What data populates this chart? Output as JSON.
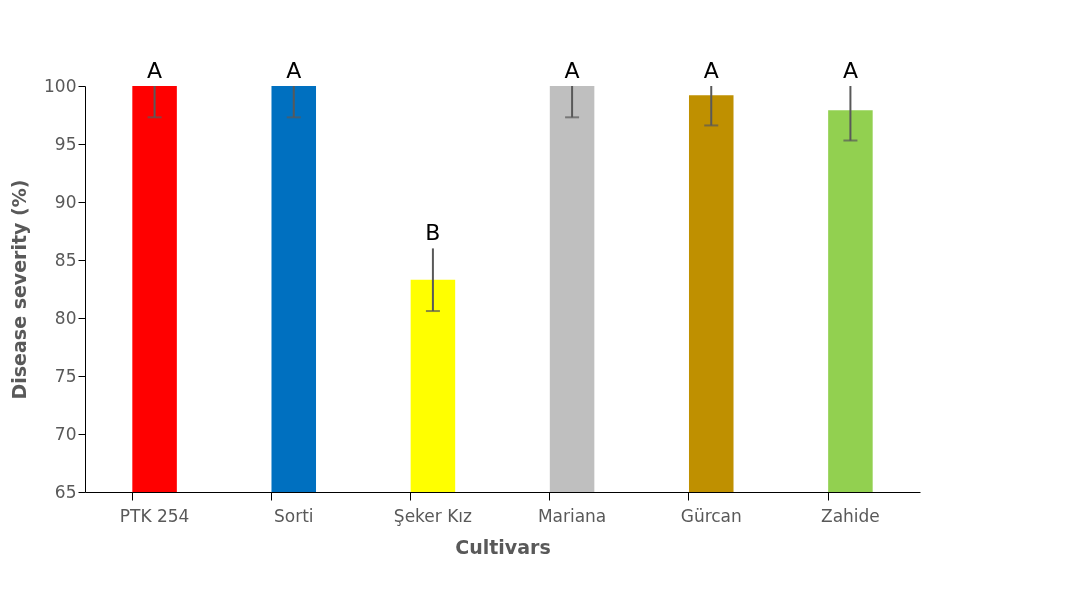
{
  "chart_data": {
    "type": "bar",
    "xlabel": "Cultivars",
    "ylabel": "Disease severity (%)",
    "categories": [
      "PTK 254",
      "Sorti",
      "Şeker Kız",
      "Mariana",
      "Gürcan",
      "Zahide"
    ],
    "values": [
      100,
      100,
      83.3,
      100,
      99.2,
      97.9
    ],
    "colors": [
      "#ff0000",
      "#0070c0",
      "#ffff00",
      "#bfbfbf",
      "#bf9000",
      "#92d050"
    ],
    "errors": [
      [
        97.3,
        100
      ],
      [
        97.3,
        100
      ],
      [
        80.6,
        86.0
      ],
      [
        97.3,
        100
      ],
      [
        96.6,
        100
      ],
      [
        95.3,
        100
      ]
    ],
    "ylim": [
      65,
      100
    ],
    "yticks": [
      65,
      70,
      75,
      80,
      85,
      90,
      95,
      100
    ],
    "grid": false,
    "annotations": [
      {
        "text": "A",
        "x": "PTK 254",
        "y": 100
      },
      {
        "text": "A",
        "x": "Sorti",
        "y": 100
      },
      {
        "text": "B",
        "x": "Şeker Kız",
        "y": 86.0
      },
      {
        "text": "A",
        "x": "Mariana",
        "y": 100
      },
      {
        "text": "A",
        "x": "Gürcan",
        "y": 100
      },
      {
        "text": "A",
        "x": "Zahide",
        "y": 100
      }
    ]
  }
}
